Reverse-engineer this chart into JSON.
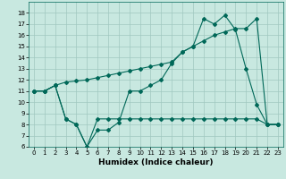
{
  "xlabel": "Humidex (Indice chaleur)",
  "bg_color": "#c8e8e0",
  "grid_color": "#a0c8c0",
  "line_color": "#006858",
  "ylim": [
    6,
    19
  ],
  "xlim": [
    -0.5,
    23.5
  ],
  "yticks": [
    6,
    7,
    8,
    9,
    10,
    11,
    12,
    13,
    14,
    15,
    16,
    17,
    18
  ],
  "xticks": [
    0,
    1,
    2,
    3,
    4,
    5,
    6,
    7,
    8,
    9,
    10,
    11,
    12,
    13,
    14,
    15,
    16,
    17,
    18,
    19,
    20,
    21,
    22,
    23
  ],
  "series1_x": [
    0,
    1,
    2,
    3,
    4,
    5,
    6,
    7,
    8,
    9,
    10,
    11,
    12,
    13,
    14,
    15,
    16,
    17,
    18,
    19,
    20,
    21,
    22,
    23
  ],
  "series1_y": [
    11,
    11,
    11.5,
    8.5,
    8.0,
    6.0,
    7.5,
    7.5,
    8.2,
    11.0,
    11.0,
    11.5,
    12.0,
    13.5,
    14.5,
    15.0,
    17.5,
    17.0,
    17.8,
    16.5,
    13.0,
    9.8,
    8.0,
    8.0
  ],
  "series2_x": [
    0,
    1,
    2,
    3,
    4,
    5,
    6,
    7,
    8,
    9,
    10,
    11,
    12,
    13,
    14,
    15,
    16,
    17,
    18,
    19,
    20,
    21,
    22,
    23
  ],
  "series2_y": [
    11,
    11,
    11.5,
    8.5,
    8.0,
    6.0,
    8.5,
    8.5,
    8.5,
    8.5,
    8.5,
    8.5,
    8.5,
    8.5,
    8.5,
    8.5,
    8.5,
    8.5,
    8.5,
    8.5,
    8.5,
    8.5,
    8.0,
    8.0
  ],
  "series3_x": [
    0,
    1,
    2,
    3,
    4,
    5,
    6,
    7,
    8,
    9,
    10,
    11,
    12,
    13,
    14,
    15,
    16,
    17,
    18,
    19,
    20,
    21,
    22,
    23
  ],
  "series3_y": [
    11,
    11,
    11.5,
    11.8,
    11.9,
    12.0,
    12.2,
    12.4,
    12.6,
    12.8,
    13.0,
    13.2,
    13.4,
    13.6,
    14.5,
    15.0,
    15.5,
    16.0,
    16.3,
    16.6,
    16.6,
    17.5,
    8.0,
    8.0
  ],
  "marker": "D",
  "markersize": 2.0,
  "linewidth": 0.8,
  "xlabel_fontsize": 6.5,
  "tick_fontsize": 5.0
}
